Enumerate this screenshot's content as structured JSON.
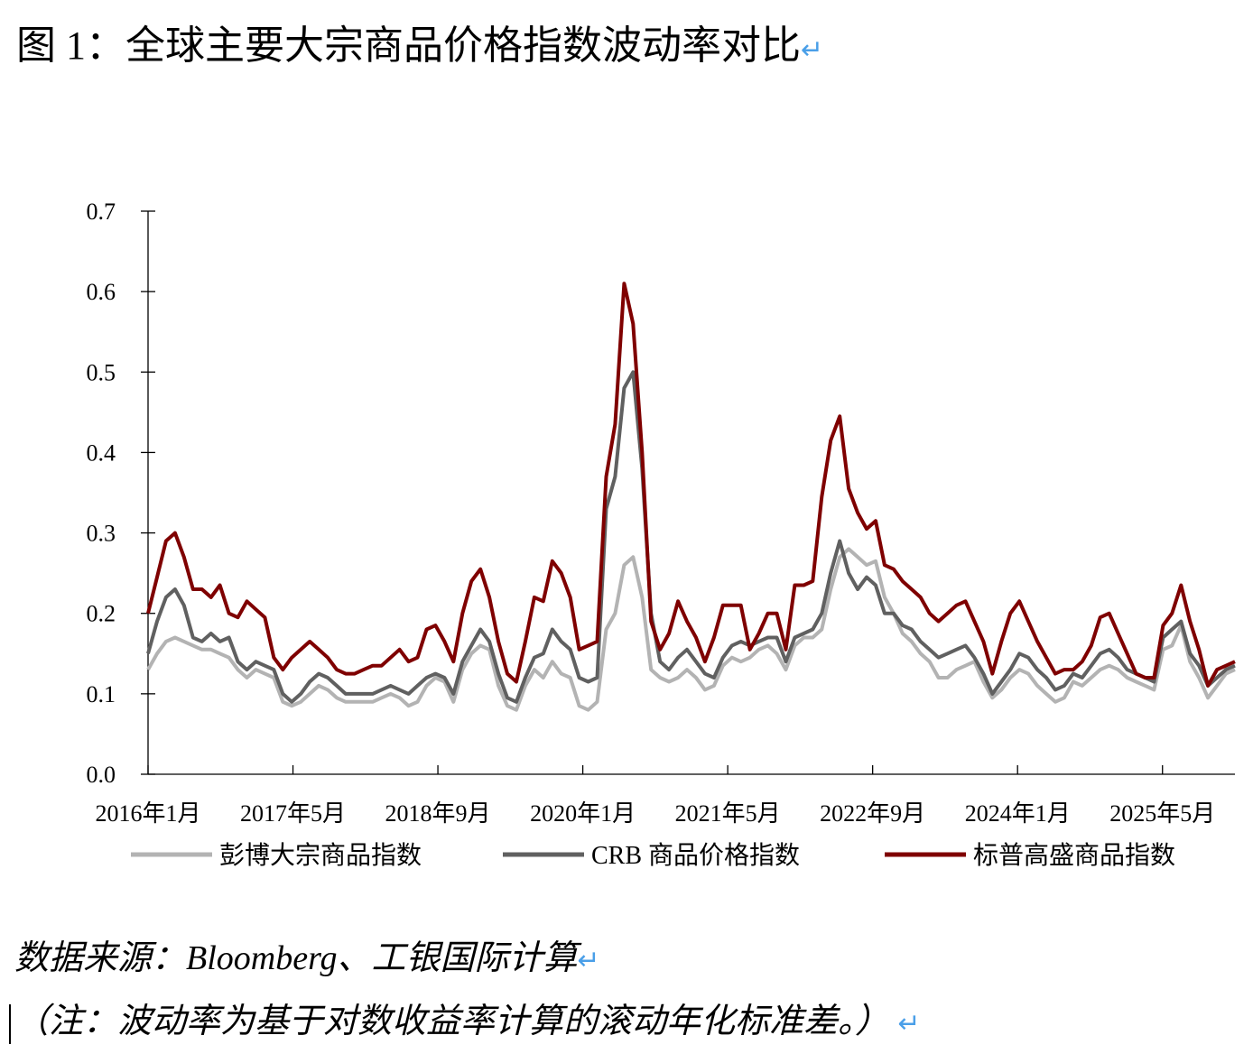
{
  "title": "图 1：全球主要大宗商品价格指数波动率对比",
  "return_mark": "↵",
  "source": "数据来源：Bloomberg、工银国际计算",
  "note": "（注：波动率为基于对数收益率计算的滚动年化标准差。）",
  "chart_data": {
    "type": "line",
    "title": "全球主要大宗商品价格指数波动率对比",
    "xlabel": "",
    "ylabel": "",
    "ylim": [
      0,
      0.7
    ],
    "yticks": [
      "0.0",
      "0.1",
      "0.2",
      "0.3",
      "0.4",
      "0.5",
      "0.6",
      "0.7"
    ],
    "xlim_months_from_2016_01": [
      0,
      120
    ],
    "xticks": [
      "2016年1月",
      "2017年5月",
      "2018年9月",
      "2020年1月",
      "2021年5月",
      "2022年9月",
      "2024年1月",
      "2025年5月"
    ],
    "x_note": "monthly samples from 2016-01 to ~2025-12",
    "legend_position": "bottom",
    "series": [
      {
        "name": "彭博大宗商品指数",
        "color": "#b3b3b3",
        "values": [
          0.13,
          0.15,
          0.165,
          0.17,
          0.165,
          0.16,
          0.155,
          0.155,
          0.15,
          0.145,
          0.13,
          0.12,
          0.13,
          0.125,
          0.12,
          0.09,
          0.085,
          0.09,
          0.1,
          0.11,
          0.105,
          0.095,
          0.09,
          0.09,
          0.09,
          0.09,
          0.095,
          0.1,
          0.095,
          0.085,
          0.09,
          0.11,
          0.12,
          0.115,
          0.09,
          0.13,
          0.15,
          0.16,
          0.155,
          0.11,
          0.085,
          0.08,
          0.11,
          0.13,
          0.12,
          0.14,
          0.125,
          0.12,
          0.085,
          0.08,
          0.09,
          0.18,
          0.2,
          0.26,
          0.27,
          0.22,
          0.13,
          0.12,
          0.115,
          0.12,
          0.13,
          0.12,
          0.105,
          0.11,
          0.135,
          0.145,
          0.14,
          0.145,
          0.155,
          0.16,
          0.15,
          0.13,
          0.16,
          0.17,
          0.17,
          0.18,
          0.23,
          0.27,
          0.28,
          0.27,
          0.26,
          0.265,
          0.22,
          0.2,
          0.175,
          0.165,
          0.15,
          0.14,
          0.12,
          0.12,
          0.13,
          0.135,
          0.14,
          0.115,
          0.095,
          0.105,
          0.12,
          0.13,
          0.125,
          0.11,
          0.1,
          0.09,
          0.095,
          0.115,
          0.11,
          0.12,
          0.13,
          0.135,
          0.13,
          0.12,
          0.115,
          0.11,
          0.105,
          0.155,
          0.16,
          0.185,
          0.14,
          0.12,
          0.095,
          0.11,
          0.125,
          0.13
        ]
      },
      {
        "name": "CRB 商品价格指数",
        "color": "#606060",
        "values": [
          0.15,
          0.19,
          0.22,
          0.23,
          0.21,
          0.17,
          0.165,
          0.175,
          0.165,
          0.17,
          0.14,
          0.13,
          0.14,
          0.135,
          0.13,
          0.1,
          0.09,
          0.1,
          0.115,
          0.125,
          0.12,
          0.11,
          0.1,
          0.1,
          0.1,
          0.1,
          0.105,
          0.11,
          0.105,
          0.1,
          0.11,
          0.12,
          0.125,
          0.12,
          0.1,
          0.14,
          0.16,
          0.18,
          0.165,
          0.125,
          0.095,
          0.09,
          0.12,
          0.145,
          0.15,
          0.18,
          0.165,
          0.155,
          0.12,
          0.115,
          0.12,
          0.33,
          0.37,
          0.48,
          0.5,
          0.38,
          0.2,
          0.14,
          0.13,
          0.145,
          0.155,
          0.14,
          0.125,
          0.12,
          0.145,
          0.16,
          0.165,
          0.16,
          0.165,
          0.17,
          0.17,
          0.14,
          0.17,
          0.175,
          0.18,
          0.2,
          0.25,
          0.29,
          0.25,
          0.23,
          0.245,
          0.235,
          0.2,
          0.2,
          0.185,
          0.18,
          0.165,
          0.155,
          0.145,
          0.15,
          0.155,
          0.16,
          0.145,
          0.125,
          0.1,
          0.115,
          0.13,
          0.15,
          0.145,
          0.13,
          0.12,
          0.105,
          0.11,
          0.125,
          0.12,
          0.135,
          0.15,
          0.155,
          0.145,
          0.13,
          0.125,
          0.12,
          0.115,
          0.17,
          0.18,
          0.19,
          0.15,
          0.135,
          0.11,
          0.12,
          0.13,
          0.135
        ]
      },
      {
        "name": "标普高盛商品指数",
        "color": "#7f0000",
        "values": [
          0.2,
          0.245,
          0.29,
          0.3,
          0.27,
          0.23,
          0.23,
          0.22,
          0.235,
          0.2,
          0.195,
          0.215,
          0.205,
          0.195,
          0.145,
          0.13,
          0.145,
          0.155,
          0.165,
          0.155,
          0.145,
          0.13,
          0.125,
          0.125,
          0.13,
          0.135,
          0.135,
          0.145,
          0.155,
          0.14,
          0.145,
          0.18,
          0.185,
          0.165,
          0.14,
          0.2,
          0.24,
          0.255,
          0.22,
          0.165,
          0.125,
          0.115,
          0.165,
          0.22,
          0.215,
          0.265,
          0.25,
          0.22,
          0.155,
          0.16,
          0.165,
          0.37,
          0.435,
          0.61,
          0.56,
          0.4,
          0.19,
          0.155,
          0.175,
          0.215,
          0.19,
          0.17,
          0.14,
          0.17,
          0.21,
          0.21,
          0.21,
          0.155,
          0.175,
          0.2,
          0.2,
          0.155,
          0.235,
          0.235,
          0.24,
          0.345,
          0.415,
          0.445,
          0.355,
          0.325,
          0.305,
          0.315,
          0.26,
          0.255,
          0.24,
          0.23,
          0.22,
          0.2,
          0.19,
          0.2,
          0.21,
          0.215,
          0.19,
          0.165,
          0.125,
          0.165,
          0.2,
          0.215,
          0.19,
          0.165,
          0.145,
          0.125,
          0.13,
          0.13,
          0.14,
          0.16,
          0.195,
          0.2,
          0.175,
          0.15,
          0.125,
          0.12,
          0.12,
          0.185,
          0.2,
          0.235,
          0.19,
          0.155,
          0.11,
          0.13,
          0.135,
          0.14
        ]
      }
    ]
  }
}
